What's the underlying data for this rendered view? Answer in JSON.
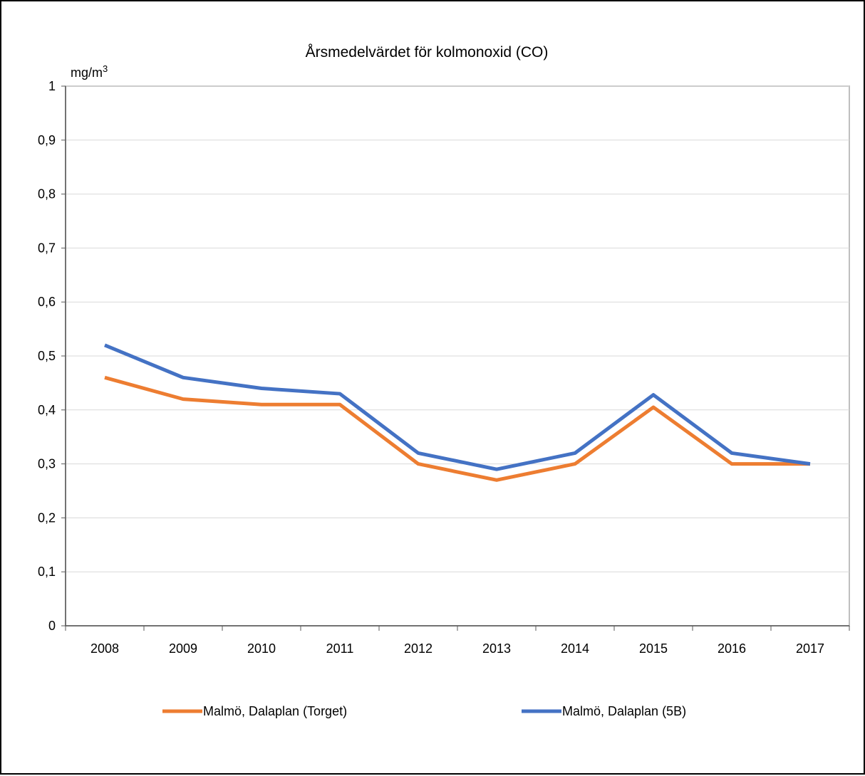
{
  "chart_data": {
    "type": "line",
    "title": "Årsmedelvärdet för kolmonoxid (CO)",
    "ylabel": "mg/m",
    "ylabel_superscript": "3",
    "xlabel": "",
    "ylim": [
      0,
      1
    ],
    "yticks": [
      "0",
      "0,1",
      "0,2",
      "0,3",
      "0,4",
      "0,5",
      "0,6",
      "0,7",
      "0,8",
      "0,9",
      "1"
    ],
    "categories": [
      "2008",
      "2009",
      "2010",
      "2011",
      "2012",
      "2013",
      "2014",
      "2015",
      "2016",
      "2017"
    ],
    "grid": true,
    "legend_position": "bottom",
    "series": [
      {
        "name": "Malmö, Dalaplan (Torget)",
        "color": "#ed7d31",
        "values": [
          0.46,
          0.42,
          0.41,
          0.41,
          0.3,
          0.27,
          0.3,
          0.405,
          0.3,
          0.3
        ]
      },
      {
        "name": "Malmö, Dalaplan (5B)",
        "color": "#4472c4",
        "values": [
          0.52,
          0.46,
          0.44,
          0.43,
          0.32,
          0.29,
          0.32,
          0.428,
          0.32,
          0.3
        ]
      }
    ]
  }
}
